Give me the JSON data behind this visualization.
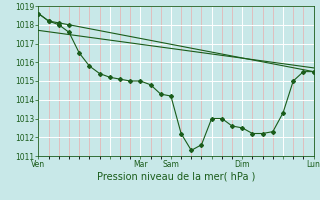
{
  "title": "",
  "xlabel": "Pression niveau de la mer( hPa )",
  "bg_color": "#c8e8e8",
  "grid_color": "#ffffff",
  "minor_grid_color": "#f0a0a0",
  "line_color": "#1a5c1a",
  "ylim": [
    1011,
    1019
  ],
  "yticks": [
    1011,
    1012,
    1013,
    1014,
    1015,
    1016,
    1017,
    1018,
    1019
  ],
  "xtick_labels": [
    "Ven",
    "",
    "Mar",
    "Sam",
    "",
    "Dim",
    "",
    "Lun"
  ],
  "xtick_positions": [
    0,
    7,
    10,
    13,
    17,
    20,
    24,
    27
  ],
  "n_points": 28,
  "line1_x": [
    0,
    1,
    2,
    3,
    4,
    5,
    6,
    7,
    8,
    9,
    10,
    11,
    12,
    13,
    14,
    15,
    16,
    17,
    18,
    19,
    20,
    21,
    22,
    23,
    24,
    25,
    26,
    27
  ],
  "line1_y": [
    1018.6,
    1018.2,
    1018.0,
    1017.6,
    1016.5,
    1015.8,
    1015.4,
    1015.2,
    1015.1,
    1015.0,
    1015.0,
    1014.8,
    1014.3,
    1014.2,
    1012.2,
    1011.3,
    1011.6,
    1013.0,
    1013.0,
    1012.6,
    1012.5,
    1012.2,
    1012.2,
    1012.3,
    1013.3,
    1015.0,
    1015.5,
    1015.5
  ],
  "line2_x": [
    0,
    1,
    2,
    3,
    27
  ],
  "line2_y": [
    1018.6,
    1018.2,
    1018.1,
    1018.0,
    1015.5
  ],
  "line3_x": [
    0,
    27
  ],
  "line3_y": [
    1017.7,
    1015.7
  ],
  "marker_size": 2.0,
  "line_width": 0.8,
  "xlabel_fontsize": 7,
  "tick_fontsize": 5.5
}
